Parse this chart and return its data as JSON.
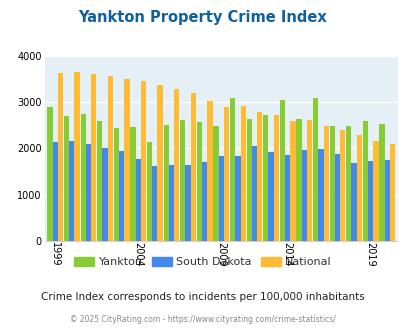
{
  "title": "Yankton Property Crime Index",
  "title_color": "#1060a0",
  "subtitle": "Crime Index corresponds to incidents per 100,000 inhabitants",
  "footer": "© 2025 CityRating.com - https://www.cityrating.com/crime-statistics/",
  "years": [
    1999,
    2000,
    2001,
    2002,
    2003,
    2004,
    2005,
    2006,
    2007,
    2008,
    2009,
    2011,
    2012,
    2013,
    2014,
    2015,
    2016,
    2017,
    2018,
    2019,
    2020
  ],
  "yankton": [
    2900,
    2700,
    2750,
    2600,
    2450,
    2470,
    2130,
    2500,
    2620,
    2580,
    2490,
    3090,
    2640,
    2730,
    3040,
    2640,
    3100,
    2490,
    2490,
    2590,
    2540
  ],
  "south_dakota": [
    2150,
    2170,
    2100,
    2010,
    1950,
    1780,
    1620,
    1640,
    1640,
    1710,
    1840,
    1840,
    2060,
    1930,
    1870,
    1960,
    1990,
    1880,
    1690,
    1730,
    1760
  ],
  "national": [
    3640,
    3660,
    3610,
    3560,
    3510,
    3460,
    3370,
    3290,
    3210,
    3020,
    2900,
    2910,
    2780,
    2720,
    2590,
    2620,
    2490,
    2400,
    2300,
    2170,
    2100
  ],
  "yankton_color": "#88cc33",
  "sd_color": "#4488ee",
  "national_color": "#ffbb33",
  "bg_color": "#e4f0f5",
  "ylim": [
    0,
    4000
  ],
  "yticks": [
    0,
    1000,
    2000,
    3000,
    4000
  ],
  "tick_years": [
    1999,
    2004,
    2009,
    2014,
    2019
  ],
  "legend_labels": [
    "Yankton",
    "South Dakota",
    "National"
  ]
}
